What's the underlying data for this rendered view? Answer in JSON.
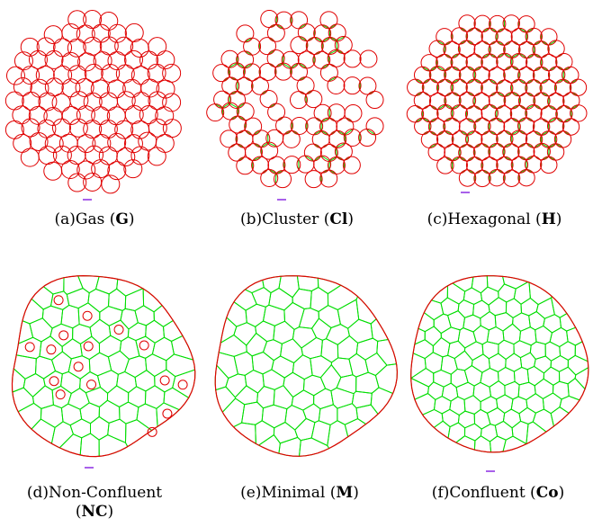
{
  "panels": [
    {
      "id": "a",
      "label": "(a)",
      "name": "Gas",
      "code": "G",
      "type": "gas"
    },
    {
      "id": "b",
      "label": "(b)",
      "name": "Cluster",
      "code": "Cl",
      "type": "cluster"
    },
    {
      "id": "c",
      "label": "(c)",
      "name": "Hexagonal",
      "code": "H",
      "type": "hexagonal"
    },
    {
      "id": "d",
      "label": "(d)",
      "name": "Non-Confluent",
      "code": "NC",
      "type": "non-confluent"
    },
    {
      "id": "e",
      "label": "(e)",
      "name": "Minimal",
      "code": "M",
      "type": "minimal"
    },
    {
      "id": "f",
      "label": "(f)",
      "name": "Confluent",
      "code": "Co",
      "type": "confluent"
    }
  ],
  "colors": {
    "membrane": "#e00000",
    "junction": "#00dd00",
    "scale_bar": "#8a2be2"
  }
}
